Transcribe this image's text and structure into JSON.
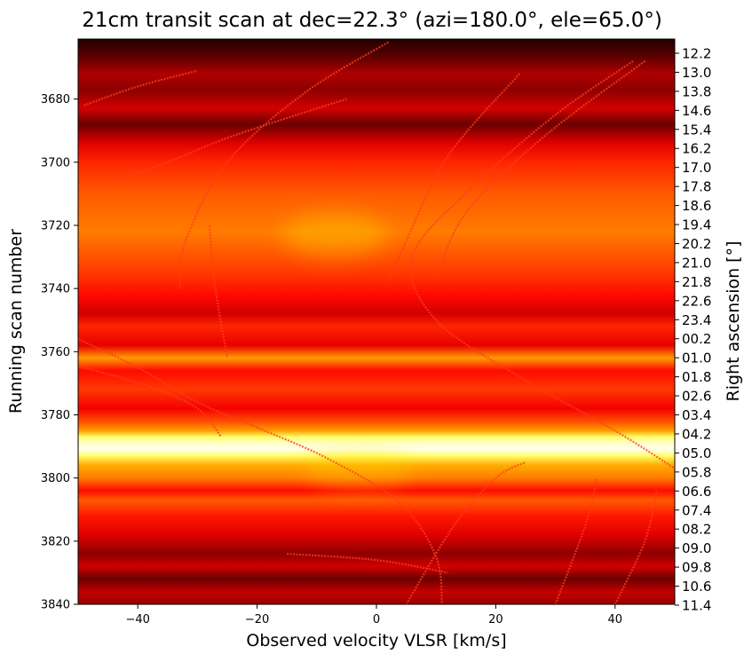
{
  "chart_data": {
    "type": "heatmap",
    "title": "21cm transit scan at dec=22.3° (azi=180.0°, ele=65.0°)",
    "xlabel": "Observed velocity VLSR [km/s]",
    "ylabel": "Running scan number",
    "y2label": "Right ascension [°]",
    "xlim": [
      -50,
      50
    ],
    "ylim": [
      3840,
      3661
    ],
    "x_ticks": [
      -40,
      -20,
      0,
      20,
      40
    ],
    "y_ticks": [
      3680,
      3700,
      3720,
      3740,
      3760,
      3780,
      3800,
      3820,
      3840
    ],
    "y2_ticks": [
      {
        "scan": 3663,
        "label": "12.2"
      },
      {
        "scan": 3669,
        "label": "13.0"
      },
      {
        "scan": 3675,
        "label": "13.8"
      },
      {
        "scan": 3681,
        "label": "14.6"
      },
      {
        "scan": 3686,
        "label": "15.4"
      },
      {
        "scan": 3692,
        "label": "16.2"
      },
      {
        "scan": 3697,
        "label": "17.0"
      },
      {
        "scan": 3703,
        "label": "17.8"
      },
      {
        "scan": 3709,
        "label": "18.6"
      },
      {
        "scan": 3714,
        "label": "19.4"
      },
      {
        "scan": 3720,
        "label": "20.2"
      },
      {
        "scan": 3726,
        "label": "21.0"
      },
      {
        "scan": 3731,
        "label": "21.8"
      },
      {
        "scan": 3737,
        "label": "22.6"
      },
      {
        "scan": 3743,
        "label": "23.4"
      },
      {
        "scan": 3748,
        "label": "00.2"
      },
      {
        "scan": 3754,
        "label": "01.0"
      },
      {
        "scan": 3760,
        "label": "01.8"
      },
      {
        "scan": 3765,
        "label": "02.6"
      },
      {
        "scan": 3771,
        "label": "03.4"
      },
      {
        "scan": 3777,
        "label": "04.2"
      },
      {
        "scan": 3782,
        "label": "05.0"
      },
      {
        "scan": 3788,
        "label": "05.8"
      },
      {
        "scan": 3794,
        "label": "06.6"
      },
      {
        "scan": 3799,
        "label": "07.4"
      },
      {
        "scan": 3805,
        "label": "08.2"
      },
      {
        "scan": 3811,
        "label": "09.0"
      },
      {
        "scan": 3816,
        "label": "09.8"
      },
      {
        "scan": 3822,
        "label": "10.6"
      },
      {
        "scan": 3828,
        "label": "11.4"
      }
    ],
    "colormap": "hot",
    "intensity_profile": [
      {
        "scan": 3661,
        "v": 0.05
      },
      {
        "scan": 3666,
        "v": 0.12
      },
      {
        "scan": 3672,
        "v": 0.25
      },
      {
        "scan": 3677,
        "v": 0.2
      },
      {
        "scan": 3683,
        "v": 0.3
      },
      {
        "scan": 3688,
        "v": 0.15
      },
      {
        "scan": 3694,
        "v": 0.32
      },
      {
        "scan": 3700,
        "v": 0.42
      },
      {
        "scan": 3710,
        "v": 0.5
      },
      {
        "scan": 3722,
        "v": 0.55
      },
      {
        "scan": 3735,
        "v": 0.45
      },
      {
        "scan": 3742,
        "v": 0.38
      },
      {
        "scan": 3748,
        "v": 0.3
      },
      {
        "scan": 3752,
        "v": 0.42
      },
      {
        "scan": 3758,
        "v": 0.33
      },
      {
        "scan": 3762,
        "v": 0.6
      },
      {
        "scan": 3766,
        "v": 0.38
      },
      {
        "scan": 3772,
        "v": 0.45
      },
      {
        "scan": 3778,
        "v": 0.35
      },
      {
        "scan": 3782,
        "v": 0.48
      },
      {
        "scan": 3785,
        "v": 0.6
      },
      {
        "scan": 3787,
        "v": 0.85
      },
      {
        "scan": 3789,
        "v": 0.95
      },
      {
        "scan": 3791,
        "v": 0.98
      },
      {
        "scan": 3793,
        "v": 0.85
      },
      {
        "scan": 3796,
        "v": 0.62
      },
      {
        "scan": 3800,
        "v": 0.55
      },
      {
        "scan": 3804,
        "v": 0.38
      },
      {
        "scan": 3807,
        "v": 0.5
      },
      {
        "scan": 3812,
        "v": 0.4
      },
      {
        "scan": 3818,
        "v": 0.32
      },
      {
        "scan": 3824,
        "v": 0.2
      },
      {
        "scan": 3828,
        "v": 0.3
      },
      {
        "scan": 3832,
        "v": 0.15
      },
      {
        "scan": 3836,
        "v": 0.28
      },
      {
        "scan": 3840,
        "v": 0.22
      }
    ],
    "hotspots": [
      {
        "vel": -7,
        "scan": 3723,
        "v": 0.35
      },
      {
        "vel": -3,
        "scan": 3797,
        "v": 0.25
      }
    ],
    "arc_traces": [
      [
        {
          "vel": -49,
          "scan": 3682
        },
        {
          "vel": -40,
          "scan": 3676
        },
        {
          "vel": -30,
          "scan": 3671
        }
      ],
      [
        {
          "vel": -44,
          "scan": 3706
        },
        {
          "vel": -35,
          "scan": 3700
        },
        {
          "vel": -26,
          "scan": 3693
        },
        {
          "vel": -15,
          "scan": 3686
        },
        {
          "vel": -5,
          "scan": 3680
        }
      ],
      [
        {
          "vel": 2,
          "scan": 3662
        },
        {
          "vel": -12,
          "scan": 3678
        },
        {
          "vel": -25,
          "scan": 3700
        },
        {
          "vel": -32,
          "scan": 3725
        },
        {
          "vel": -33,
          "scan": 3740
        }
      ],
      [
        {
          "vel": 24,
          "scan": 3672
        },
        {
          "vel": 12,
          "scan": 3698
        },
        {
          "vel": 5,
          "scan": 3725
        },
        {
          "vel": 2,
          "scan": 3738
        }
      ],
      [
        {
          "vel": 43,
          "scan": 3668
        },
        {
          "vel": 30,
          "scan": 3685
        },
        {
          "vel": 16,
          "scan": 3708
        },
        {
          "vel": 6,
          "scan": 3730
        },
        {
          "vel": 10,
          "scan": 3750
        },
        {
          "vel": 24,
          "scan": 3768
        },
        {
          "vel": 40,
          "scan": 3785
        },
        {
          "vel": 50,
          "scan": 3797
        }
      ],
      [
        {
          "vel": 45,
          "scan": 3668
        },
        {
          "vel": 28,
          "scan": 3692
        },
        {
          "vel": 15,
          "scan": 3716
        },
        {
          "vel": 10,
          "scan": 3737
        }
      ],
      [
        {
          "vel": -50,
          "scan": 3756
        },
        {
          "vel": -40,
          "scan": 3765
        },
        {
          "vel": -30,
          "scan": 3776
        },
        {
          "vel": -20,
          "scan": 3784
        },
        {
          "vel": -8,
          "scan": 3794
        },
        {
          "vel": 4,
          "scan": 3808
        },
        {
          "vel": 10,
          "scan": 3825
        },
        {
          "vel": 11,
          "scan": 3840
        }
      ],
      [
        {
          "vel": -49,
          "scan": 3765
        },
        {
          "vel": -38,
          "scan": 3771
        },
        {
          "vel": -30,
          "scan": 3778
        },
        {
          "vel": -26,
          "scan": 3787
        }
      ],
      [
        {
          "vel": 5,
          "scan": 3840
        },
        {
          "vel": 13,
          "scan": 3815
        },
        {
          "vel": 20,
          "scan": 3800
        },
        {
          "vel": 25,
          "scan": 3795
        }
      ],
      [
        {
          "vel": 30,
          "scan": 3840
        },
        {
          "vel": 35,
          "scan": 3815
        },
        {
          "vel": 37,
          "scan": 3800
        }
      ],
      [
        {
          "vel": 40,
          "scan": 3840
        },
        {
          "vel": 45,
          "scan": 3820
        },
        {
          "vel": 47,
          "scan": 3804
        }
      ],
      [
        {
          "vel": -28,
          "scan": 3720
        },
        {
          "vel": -27,
          "scan": 3740
        },
        {
          "vel": -25,
          "scan": 3762
        }
      ],
      [
        {
          "vel": -15,
          "scan": 3824
        },
        {
          "vel": 0,
          "scan": 3826
        },
        {
          "vel": 12,
          "scan": 3830
        }
      ]
    ]
  }
}
